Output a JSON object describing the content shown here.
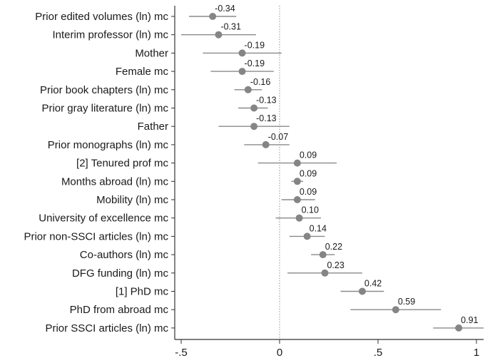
{
  "chart_data": {
    "type": "scatter",
    "style": "coefficient-plot-with-confidence-intervals",
    "orientation": "horizontal",
    "categories": [
      "Prior edited volumes (ln) mc",
      "Interim professor (ln) mc",
      "Mother",
      "Female mc",
      "Prior book chapters (ln) mc",
      "Prior gray literature (ln) mc",
      "Father",
      "Prior monographs (ln) mc",
      "[2] Tenured prof mc",
      "Months abroad (ln) mc",
      "Mobility (ln) mc",
      "University of excellence mc",
      "Prior non-SSCI articles (ln) mc",
      "Co-authors (ln) mc",
      "DFG funding (ln) mc",
      "[1] PhD mc",
      "PhD from abroad mc",
      "Prior SSCI articles (ln) mc"
    ],
    "values": [
      -0.34,
      -0.31,
      -0.19,
      -0.19,
      -0.16,
      -0.13,
      -0.13,
      -0.07,
      0.09,
      0.09,
      0.09,
      0.1,
      0.14,
      0.22,
      0.23,
      0.42,
      0.59,
      0.91
    ],
    "value_labels": [
      "-0.34",
      "-0.31",
      "-0.19",
      "-0.19",
      "-0.16",
      "-0.13",
      "-0.13",
      "-0.07",
      "0.09",
      "0.09",
      "0.09",
      "0.10",
      "0.14",
      "0.22",
      "0.23",
      "0.42",
      "0.59",
      "0.91"
    ],
    "ci_lower": [
      -0.46,
      -0.5,
      -0.39,
      -0.35,
      -0.23,
      -0.21,
      -0.31,
      -0.18,
      -0.11,
      0.06,
      0.01,
      -0.02,
      0.05,
      0.16,
      0.04,
      0.31,
      0.36,
      0.78
    ],
    "ci_upper": [
      -0.22,
      -0.12,
      0.01,
      -0.03,
      -0.09,
      -0.06,
      0.05,
      0.05,
      0.29,
      0.12,
      0.18,
      0.21,
      0.23,
      0.28,
      0.42,
      0.53,
      0.82,
      1.04
    ],
    "x_ticks": [
      -0.5,
      0,
      0.5,
      1
    ],
    "x_tick_labels": [
      "-.5",
      "0",
      ".5",
      "1"
    ],
    "xlim": [
      -0.55,
      1.04
    ],
    "reference_line_x": 0,
    "reference_line_style": "dotted",
    "grid": false,
    "title": "",
    "xlabel": "",
    "ylabel": "",
    "colors": {
      "marker": "#858585",
      "ci_line": "#8a8a8a",
      "axis": "#333333",
      "reference_line": "#777777",
      "text": "#1a1a1a"
    }
  }
}
